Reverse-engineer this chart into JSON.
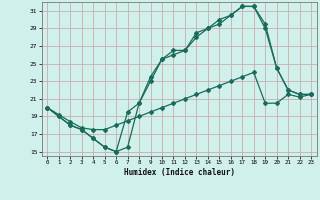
{
  "background_color": "#d0f0eb",
  "grid_color": "#c8a0a0",
  "line_color": "#1a6b5a",
  "xlabel": "Humidex (Indice chaleur)",
  "xlim": [
    -0.5,
    23.5
  ],
  "ylim": [
    14.5,
    32
  ],
  "yticks": [
    15,
    17,
    19,
    21,
    23,
    25,
    27,
    29,
    31
  ],
  "xticks": [
    0,
    1,
    2,
    3,
    4,
    5,
    6,
    7,
    8,
    9,
    10,
    11,
    12,
    13,
    14,
    15,
    16,
    17,
    18,
    19,
    20,
    21,
    22,
    23
  ],
  "line1_x": [
    0,
    1,
    2,
    3,
    4,
    5,
    6,
    7,
    8,
    9,
    10,
    11,
    12,
    13,
    14,
    15,
    16,
    17,
    18,
    19,
    20,
    21,
    22,
    23
  ],
  "line1_y": [
    20.0,
    19.0,
    18.0,
    17.5,
    16.5,
    15.5,
    15.0,
    15.5,
    20.5,
    23.0,
    25.5,
    26.0,
    26.5,
    28.0,
    29.0,
    29.5,
    30.5,
    31.5,
    31.5,
    29.0,
    24.5,
    22.0,
    21.5,
    21.5
  ],
  "line2_x": [
    0,
    1,
    2,
    3,
    4,
    5,
    6,
    7,
    8,
    9,
    10,
    11,
    12,
    13,
    14,
    15,
    16,
    17,
    18,
    19,
    20,
    21,
    22,
    23
  ],
  "line2_y": [
    20.0,
    19.0,
    18.0,
    17.5,
    16.5,
    15.5,
    15.0,
    19.5,
    20.5,
    23.5,
    25.5,
    26.5,
    26.5,
    28.5,
    29.0,
    30.0,
    30.5,
    31.5,
    31.5,
    29.5,
    24.5,
    22.0,
    21.5,
    21.5
  ],
  "line3_x": [
    0,
    1,
    2,
    3,
    4,
    5,
    6,
    7,
    8,
    9,
    10,
    11,
    12,
    13,
    14,
    15,
    16,
    17,
    18,
    19,
    20,
    21,
    22,
    23
  ],
  "line3_y": [
    20.0,
    19.2,
    18.4,
    17.7,
    17.5,
    17.5,
    18.0,
    18.5,
    19.0,
    19.5,
    20.0,
    20.5,
    21.0,
    21.5,
    22.0,
    22.5,
    23.0,
    23.5,
    24.0,
    20.5,
    20.5,
    21.5,
    21.2,
    21.5
  ],
  "marker": "D",
  "marker_size": 2.0,
  "line_width": 0.9
}
